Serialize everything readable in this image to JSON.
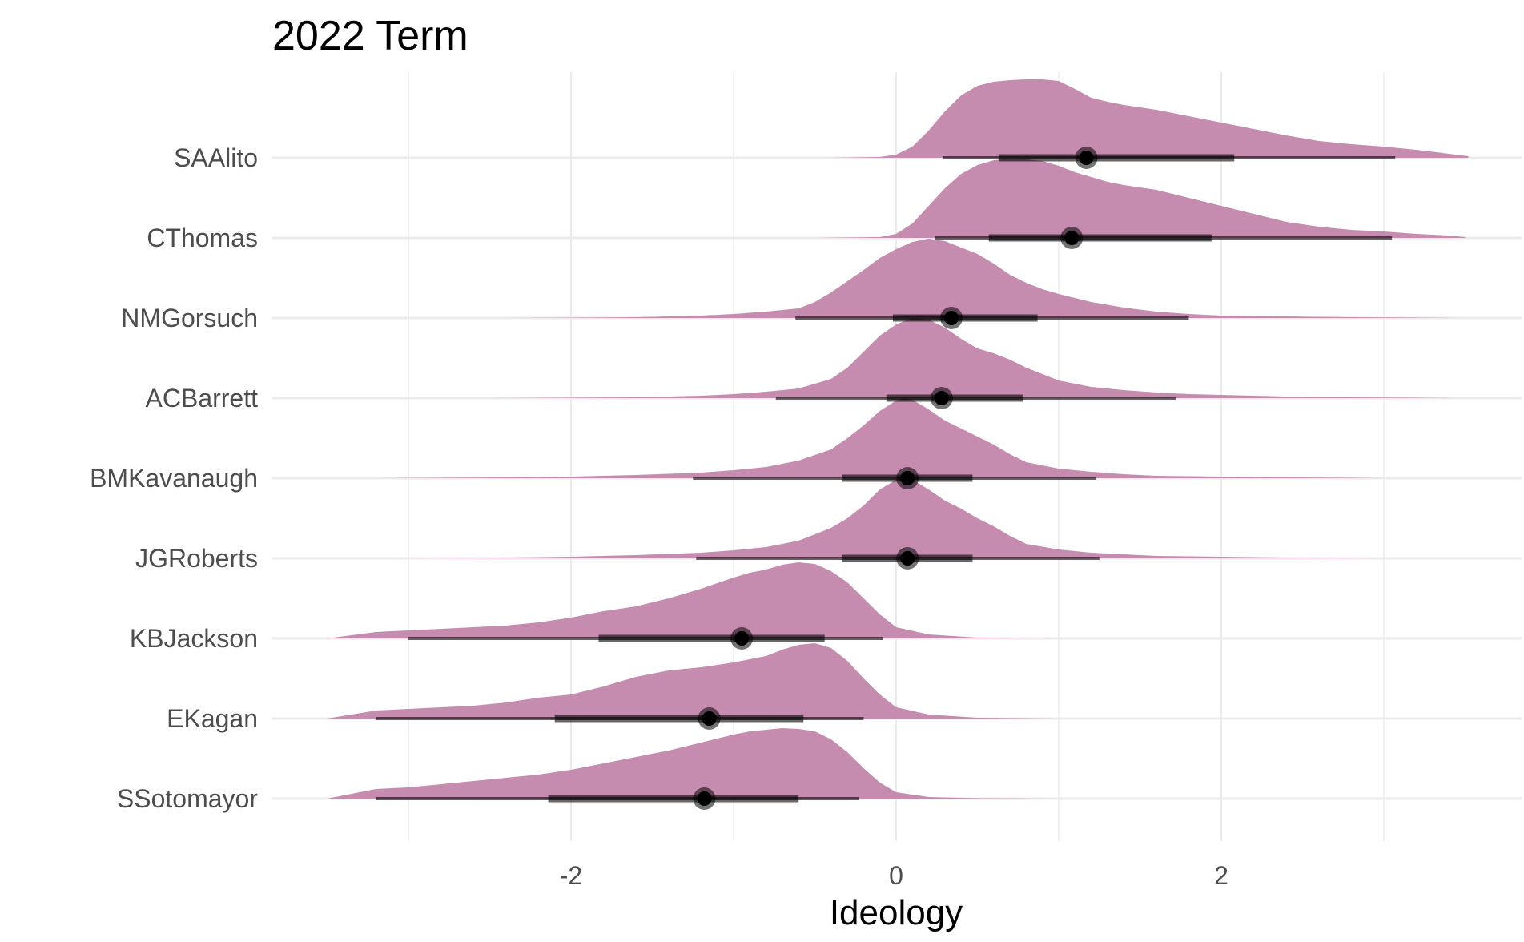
{
  "chart_data": {
    "type": "area",
    "title": "2022 Term",
    "xlabel": "Ideology",
    "ylabel": "",
    "xlim": [
      -3.0,
      3.8
    ],
    "xticks": [
      -2,
      0,
      2
    ],
    "tick_labels": [
      "-2",
      "0",
      "2"
    ],
    "grid": true,
    "fill_color": "#c48aae",
    "interval_color": "#000000",
    "categories": [
      "SAAlito",
      "CThomas",
      "NMGorsuch",
      "ACBarrett",
      "BMKavanaugh",
      "JGRoberts",
      "KBJackson",
      "EKagan",
      "SSotomayor"
    ],
    "series": [
      {
        "name": "SAAlito",
        "median": 1.17,
        "interval_66": [
          0.63,
          2.08
        ],
        "interval_95": [
          0.29,
          3.07
        ],
        "x": [
          -0.4,
          -0.1,
          0.0,
          0.1,
          0.2,
          0.3,
          0.4,
          0.5,
          0.6,
          0.7,
          0.8,
          0.9,
          1.0,
          1.1,
          1.2,
          1.3,
          1.4,
          1.6,
          1.8,
          2.0,
          2.2,
          2.4,
          2.6,
          2.8,
          3.0,
          3.2,
          3.4,
          3.52
        ],
        "density": [
          0.0,
          0.01,
          0.04,
          0.14,
          0.34,
          0.58,
          0.78,
          0.9,
          0.95,
          0.97,
          0.98,
          0.98,
          0.96,
          0.86,
          0.75,
          0.7,
          0.66,
          0.6,
          0.52,
          0.44,
          0.36,
          0.28,
          0.21,
          0.17,
          0.14,
          0.1,
          0.05,
          0.02
        ]
      },
      {
        "name": "CThomas",
        "median": 1.08,
        "interval_66": [
          0.57,
          1.94
        ],
        "interval_95": [
          0.24,
          3.05
        ],
        "x": [
          -0.5,
          -0.1,
          0.0,
          0.1,
          0.2,
          0.3,
          0.4,
          0.5,
          0.6,
          0.7,
          0.8,
          0.9,
          1.0,
          1.1,
          1.2,
          1.3,
          1.4,
          1.6,
          1.8,
          2.0,
          2.2,
          2.4,
          2.6,
          2.8,
          3.0,
          3.2,
          3.4,
          3.5
        ],
        "density": [
          0.0,
          0.01,
          0.05,
          0.18,
          0.4,
          0.62,
          0.8,
          0.91,
          0.97,
          0.99,
          0.98,
          0.96,
          0.9,
          0.82,
          0.76,
          0.7,
          0.66,
          0.6,
          0.5,
          0.4,
          0.3,
          0.2,
          0.14,
          0.1,
          0.08,
          0.05,
          0.03,
          0.01
        ]
      },
      {
        "name": "NMGorsuch",
        "median": 0.34,
        "interval_66": [
          -0.02,
          0.87
        ],
        "interval_95": [
          -0.62,
          1.8
        ],
        "x": [
          -2.4,
          -1.6,
          -1.2,
          -1.0,
          -0.8,
          -0.6,
          -0.5,
          -0.4,
          -0.3,
          -0.2,
          -0.1,
          0.0,
          0.1,
          0.2,
          0.3,
          0.4,
          0.5,
          0.6,
          0.7,
          0.8,
          0.9,
          1.0,
          1.2,
          1.4,
          1.6,
          1.8,
          2.0,
          2.4,
          2.8,
          3.2,
          3.45
        ],
        "density": [
          0.0,
          0.01,
          0.03,
          0.05,
          0.08,
          0.12,
          0.2,
          0.32,
          0.46,
          0.6,
          0.75,
          0.86,
          0.95,
          0.99,
          0.96,
          0.88,
          0.8,
          0.68,
          0.54,
          0.44,
          0.36,
          0.3,
          0.2,
          0.13,
          0.08,
          0.05,
          0.03,
          0.02,
          0.01,
          0.005,
          0.0
        ]
      },
      {
        "name": "ACBarrett",
        "median": 0.28,
        "interval_66": [
          -0.06,
          0.78
        ],
        "interval_95": [
          -0.74,
          1.72
        ],
        "x": [
          -2.5,
          -1.6,
          -1.2,
          -1.0,
          -0.8,
          -0.6,
          -0.4,
          -0.3,
          -0.2,
          -0.1,
          0.0,
          0.1,
          0.2,
          0.3,
          0.4,
          0.5,
          0.6,
          0.7,
          0.8,
          0.9,
          1.0,
          1.2,
          1.4,
          1.6,
          1.8,
          2.0,
          2.4,
          2.8,
          3.2,
          3.45
        ],
        "density": [
          0.0,
          0.01,
          0.03,
          0.05,
          0.08,
          0.12,
          0.24,
          0.38,
          0.58,
          0.78,
          0.92,
          1.0,
          0.98,
          0.88,
          0.74,
          0.62,
          0.56,
          0.48,
          0.38,
          0.3,
          0.22,
          0.14,
          0.1,
          0.07,
          0.05,
          0.04,
          0.02,
          0.01,
          0.005,
          0.0
        ]
      },
      {
        "name": "BMKavanaugh",
        "median": 0.07,
        "interval_66": [
          -0.33,
          0.47
        ],
        "interval_95": [
          -1.25,
          1.23
        ],
        "x": [
          -3.2,
          -2.4,
          -2.0,
          -1.6,
          -1.2,
          -1.0,
          -0.8,
          -0.6,
          -0.4,
          -0.3,
          -0.2,
          -0.1,
          0.0,
          0.05,
          0.1,
          0.2,
          0.3,
          0.4,
          0.5,
          0.6,
          0.7,
          0.8,
          1.0,
          1.2,
          1.4,
          1.6,
          2.0,
          2.4,
          2.8,
          3.0
        ],
        "density": [
          0.0,
          0.01,
          0.02,
          0.04,
          0.07,
          0.1,
          0.14,
          0.22,
          0.36,
          0.5,
          0.66,
          0.84,
          0.97,
          1.0,
          0.98,
          0.86,
          0.72,
          0.62,
          0.52,
          0.42,
          0.3,
          0.2,
          0.12,
          0.08,
          0.05,
          0.03,
          0.02,
          0.01,
          0.005,
          0.0
        ]
      },
      {
        "name": "JGRoberts",
        "median": 0.07,
        "interval_66": [
          -0.33,
          0.47
        ],
        "interval_95": [
          -1.23,
          1.25
        ],
        "x": [
          -3.1,
          -2.4,
          -2.0,
          -1.6,
          -1.2,
          -1.0,
          -0.8,
          -0.6,
          -0.4,
          -0.3,
          -0.2,
          -0.1,
          0.0,
          0.05,
          0.1,
          0.2,
          0.3,
          0.4,
          0.5,
          0.6,
          0.7,
          0.8,
          1.0,
          1.2,
          1.4,
          1.6,
          2.0,
          2.4,
          2.8,
          3.0
        ],
        "density": [
          0.0,
          0.01,
          0.02,
          0.04,
          0.07,
          0.1,
          0.14,
          0.22,
          0.38,
          0.5,
          0.66,
          0.86,
          0.98,
          1.0,
          0.98,
          0.86,
          0.72,
          0.62,
          0.5,
          0.4,
          0.28,
          0.18,
          0.11,
          0.07,
          0.05,
          0.03,
          0.02,
          0.01,
          0.005,
          0.0
        ]
      },
      {
        "name": "KBJackson",
        "median": -0.95,
        "interval_66": [
          -1.83,
          -0.44
        ],
        "interval_95": [
          -3.0,
          -0.08
        ],
        "x": [
          -3.5,
          -3.2,
          -3.0,
          -2.8,
          -2.6,
          -2.4,
          -2.2,
          -2.0,
          -1.8,
          -1.6,
          -1.4,
          -1.2,
          -1.0,
          -0.9,
          -0.8,
          -0.7,
          -0.6,
          -0.5,
          -0.4,
          -0.3,
          -0.2,
          -0.1,
          0.0,
          0.2,
          0.5,
          1.0
        ],
        "density": [
          0.0,
          0.08,
          0.1,
          0.12,
          0.14,
          0.16,
          0.2,
          0.26,
          0.34,
          0.4,
          0.5,
          0.62,
          0.76,
          0.82,
          0.86,
          0.92,
          0.95,
          0.93,
          0.84,
          0.7,
          0.5,
          0.3,
          0.14,
          0.05,
          0.01,
          0.0
        ]
      },
      {
        "name": "EKagan",
        "median": -1.15,
        "interval_66": [
          -2.1,
          -0.57
        ],
        "interval_95": [
          -3.2,
          -0.2
        ],
        "x": [
          -3.5,
          -3.2,
          -3.0,
          -2.8,
          -2.6,
          -2.4,
          -2.2,
          -2.0,
          -1.8,
          -1.6,
          -1.4,
          -1.2,
          -1.0,
          -0.8,
          -0.7,
          -0.6,
          -0.5,
          -0.4,
          -0.3,
          -0.2,
          -0.1,
          0.0,
          0.2,
          0.5,
          1.0
        ],
        "density": [
          0.0,
          0.1,
          0.12,
          0.14,
          0.16,
          0.2,
          0.26,
          0.3,
          0.4,
          0.52,
          0.6,
          0.64,
          0.7,
          0.78,
          0.86,
          0.92,
          0.94,
          0.88,
          0.72,
          0.5,
          0.3,
          0.14,
          0.05,
          0.01,
          0.0
        ]
      },
      {
        "name": "SSotomayor",
        "median": -1.18,
        "interval_66": [
          -2.14,
          -0.6
        ],
        "interval_95": [
          -3.2,
          -0.23
        ],
        "x": [
          -3.5,
          -3.2,
          -3.0,
          -2.8,
          -2.6,
          -2.4,
          -2.2,
          -2.0,
          -1.8,
          -1.6,
          -1.4,
          -1.2,
          -1.0,
          -0.9,
          -0.8,
          -0.7,
          -0.6,
          -0.5,
          -0.4,
          -0.3,
          -0.2,
          -0.1,
          0.0,
          0.2,
          0.5,
          1.0
        ],
        "density": [
          0.0,
          0.12,
          0.14,
          0.18,
          0.22,
          0.26,
          0.3,
          0.36,
          0.44,
          0.52,
          0.6,
          0.7,
          0.8,
          0.84,
          0.86,
          0.88,
          0.87,
          0.84,
          0.74,
          0.58,
          0.38,
          0.2,
          0.08,
          0.02,
          0.005,
          0.0
        ]
      }
    ]
  }
}
